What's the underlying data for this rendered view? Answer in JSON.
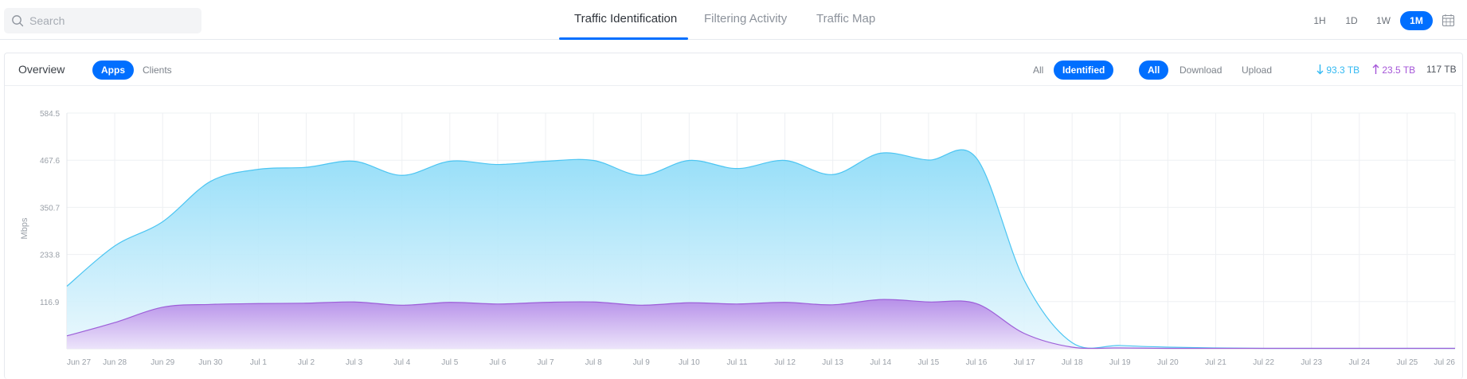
{
  "search": {
    "placeholder": "Search"
  },
  "tabs": [
    {
      "label": "Traffic Identification",
      "active": true
    },
    {
      "label": "Filtering Activity",
      "active": false
    },
    {
      "label": "Traffic Map",
      "active": false
    }
  ],
  "time_ranges": [
    {
      "label": "1H",
      "active": false
    },
    {
      "label": "1D",
      "active": false
    },
    {
      "label": "1W",
      "active": false
    },
    {
      "label": "1M",
      "active": true
    }
  ],
  "overview": {
    "title": "Overview",
    "view_toggle": [
      {
        "label": "Apps",
        "active": true
      },
      {
        "label": "Clients",
        "active": false
      }
    ],
    "filter_toggle": [
      {
        "label": "All",
        "active": false
      },
      {
        "label": "Identified",
        "active": true
      }
    ],
    "direction_toggle": [
      {
        "label": "All",
        "active": true
      },
      {
        "label": "Download",
        "active": false
      },
      {
        "label": "Upload",
        "active": false
      }
    ],
    "totals": {
      "download": "93.3 TB",
      "upload": "23.5 TB",
      "total": "117 TB"
    }
  },
  "colors": {
    "accent": "#006fff",
    "download": "#33b9f2",
    "upload": "#a556d8"
  },
  "icons": [
    "search-icon",
    "calendar-icon",
    "arrow-down-icon",
    "arrow-up-icon"
  ],
  "chart_data": {
    "type": "area",
    "ylabel": "Mbps",
    "ylim": [
      0,
      584.5
    ],
    "yticks": [
      "116.9",
      "233.8",
      "350.7",
      "467.6",
      "584.5"
    ],
    "categories": [
      "Jun 27",
      "Jun 28",
      "Jun 29",
      "Jun 30",
      "Jul 1",
      "Jul 2",
      "Jul 3",
      "Jul 4",
      "Jul 5",
      "Jul 6",
      "Jul 7",
      "Jul 8",
      "Jul 9",
      "Jul 10",
      "Jul 11",
      "Jul 12",
      "Jul 13",
      "Jul 14",
      "Jul 15",
      "Jul 16",
      "Jul 17",
      "Jul 18",
      "Jul 19",
      "Jul 20",
      "Jul 21",
      "Jul 22",
      "Jul 23",
      "Jul 24",
      "Jul 25",
      "Jul 26"
    ],
    "series": [
      {
        "values": [
          155,
          255,
          315,
          415,
          445,
          450,
          465,
          430,
          465,
          457,
          465,
          467,
          430,
          467,
          447,
          467,
          432,
          485,
          468,
          473,
          170,
          15,
          8,
          4,
          2,
          1,
          1,
          1,
          1,
          1
        ]
      },
      {
        "values": [
          32,
          65,
          103,
          110,
          112,
          113,
          116,
          108,
          115,
          111,
          115,
          116,
          108,
          114,
          111,
          115,
          109,
          122,
          116,
          112,
          38,
          4,
          2,
          1,
          1,
          1,
          1,
          1,
          1,
          1
        ]
      }
    ]
  }
}
